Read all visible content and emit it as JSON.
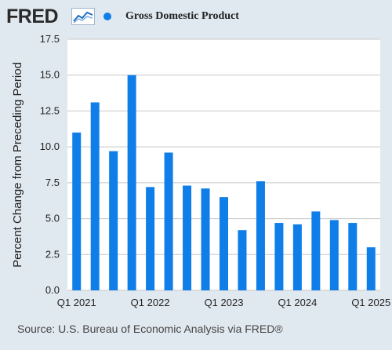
{
  "header": {
    "logo": "FRED",
    "logo_icon": "line-chart-icon"
  },
  "colors": {
    "background": "#e1e9f0",
    "plot_background": "#ffffff",
    "bar": "#0f7ee8",
    "grid": "#c8c8c8",
    "text": "#222222"
  },
  "chart_data": {
    "type": "bar",
    "title": "",
    "series": [
      {
        "name": "Gross Domestic Product",
        "values": [
          11.0,
          13.1,
          9.7,
          15.0,
          7.2,
          9.6,
          7.3,
          7.1,
          6.5,
          4.2,
          7.6,
          4.7,
          4.6,
          5.5,
          4.9,
          4.7,
          3.0
        ]
      }
    ],
    "categories": [
      "Q1 2021",
      "Q2 2021",
      "Q3 2021",
      "Q4 2021",
      "Q1 2022",
      "Q2 2022",
      "Q3 2022",
      "Q4 2022",
      "Q1 2023",
      "Q2 2023",
      "Q3 2023",
      "Q4 2023",
      "Q1 2024",
      "Q2 2024",
      "Q3 2024",
      "Q4 2024",
      "Q1 2025"
    ],
    "x_tick_labels": [
      "Q1 2021",
      "Q1 2022",
      "Q1 2023",
      "Q1 2024",
      "Q1 2025"
    ],
    "ylabel": "Percent Change from Preceding Period",
    "xlabel": "",
    "ylim": [
      0,
      17.5
    ],
    "y_ticks": [
      "0.0",
      "2.5",
      "5.0",
      "7.5",
      "10.0",
      "12.5",
      "15.0",
      "17.5"
    ],
    "grid": true,
    "legend_position": "top"
  },
  "source": "Source: U.S. Bureau of Economic Analysis via FRED®"
}
